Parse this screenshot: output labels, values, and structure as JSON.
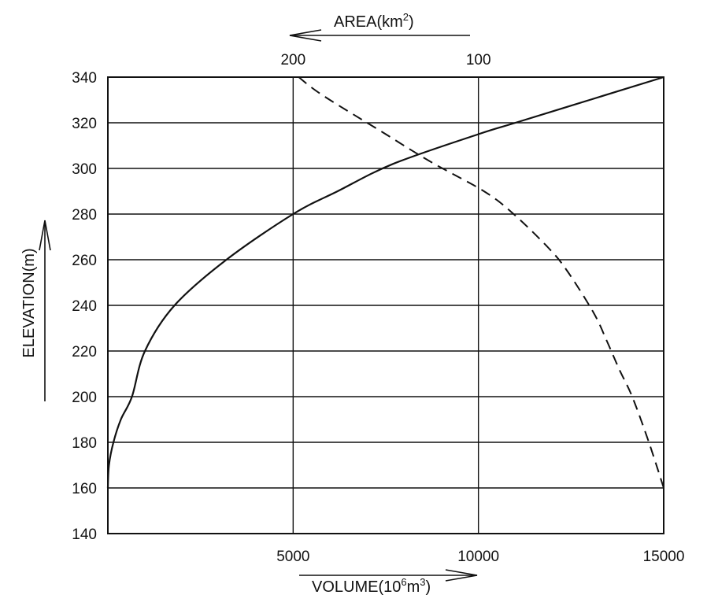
{
  "chart_data": {
    "type": "line",
    "y_axis": {
      "label": "ELEVATION(m)",
      "range": [
        140,
        340
      ],
      "ticks": [
        140,
        160,
        180,
        200,
        220,
        240,
        260,
        280,
        300,
        320,
        340
      ]
    },
    "x_axis_bottom": {
      "label_main": "VOLUME(10",
      "label_sup1": "6",
      "label_mid": "m",
      "label_sup2": "3",
      "label_end": ")",
      "range": [
        0,
        15000
      ],
      "ticks": [
        5000,
        10000,
        15000
      ],
      "direction": "left-to-right"
    },
    "x_axis_top": {
      "label_main": "AREA(km",
      "label_sup": "2",
      "label_end": ")",
      "ticks": [
        200,
        100
      ],
      "direction": "right-to-left",
      "note_scale": "100 km2 per 5000 volume units, 0 at right edge"
    },
    "grid": true,
    "series": [
      {
        "style": "solid",
        "axis": "volume",
        "points": [
          [
            0,
            160
          ],
          [
            30,
            170
          ],
          [
            150,
            180
          ],
          [
            350,
            190
          ],
          [
            650,
            200
          ],
          [
            1000,
            220
          ],
          [
            1800,
            240
          ],
          [
            3200,
            260
          ],
          [
            5000,
            280
          ],
          [
            6200,
            290
          ],
          [
            7700,
            302
          ],
          [
            10000,
            315
          ],
          [
            11000,
            320
          ],
          [
            13000,
            330
          ],
          [
            15000,
            340
          ]
        ]
      },
      {
        "style": "dashed",
        "axis": "area",
        "points": [
          [
            0,
            160
          ],
          [
            8,
            180
          ],
          [
            17,
            200
          ],
          [
            24,
            212
          ],
          [
            31,
            225
          ],
          [
            38,
            237
          ],
          [
            52,
            255
          ],
          [
            62,
            265
          ],
          [
            81,
            280
          ],
          [
            97,
            290
          ],
          [
            126,
            303
          ],
          [
            152,
            316
          ],
          [
            184,
            332
          ],
          [
            197,
            340
          ]
        ]
      }
    ]
  }
}
